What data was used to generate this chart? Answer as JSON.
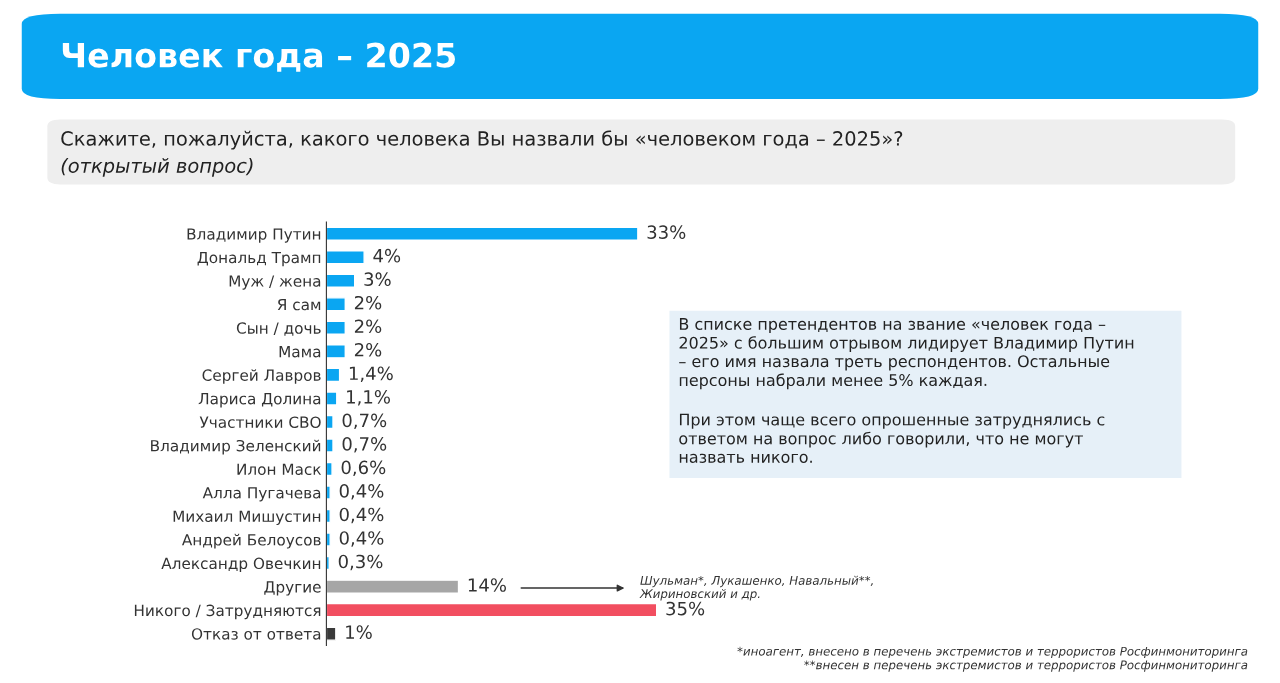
{
  "chart_data": {
    "type": "bar",
    "orientation": "horizontal",
    "title": "Человек года – 2025",
    "subtitle": "Скажите, пожалуйста, какого человека Вы назвали бы «человеком года – 2025»?",
    "categories": [
      "Владимир Путин",
      "Дональд Трамп",
      "Муж / жена",
      "Я сам",
      "Сын / дочь",
      "Мама",
      "Сергей Лавров",
      "Лариса Долина",
      "Участники СВО",
      "Владимир Зеленский",
      "Илон Маск",
      "Алла Пугачева",
      "Михаил Мишустин",
      "Андрей Белоусов",
      "Александр Овечкин",
      "Другие",
      "Никого / Затрудняются",
      "Отказ от ответа"
    ],
    "values": [
      33,
      4,
      3,
      2,
      2,
      2,
      1.4,
      1.1,
      0.7,
      0.7,
      0.6,
      0.4,
      0.4,
      0.4,
      0.3,
      14,
      35,
      1
    ],
    "colors": [
      "#0aa6f2",
      "#0aa6f2",
      "#0aa6f2",
      "#0aa6f2",
      "#0aa6f2",
      "#0aa6f2",
      "#0aa6f2",
      "#0aa6f2",
      "#0aa6f2",
      "#0aa6f2",
      "#0aa6f2",
      "#0aa6f2",
      "#0aa6f2",
      "#0aa6f2",
      "#0aa6f2",
      "#a6a6a6",
      "#f24e60",
      "#3a3a3a"
    ],
    "value_labels": [
      "33%",
      "4%",
      "3%",
      "2%",
      "2%",
      "2%",
      "1,4%",
      "1,1%",
      "0,7%",
      "0,7%",
      "0,6%",
      "0,4%",
      "0,4%",
      "0,4%",
      "0,3%",
      "14%",
      "35%",
      "1%"
    ],
    "annotations": [
      "(открытый вопрос)",
      "В списке претендентов на звание «человек года –\n2025» с большим отрывом лидирует Владимир Путин\n– его имя назвала треть респондентов. Остальные\nперсоны набрали менее 5% каждая.",
      "При этом чаще всего опрошенные затруднялись с\nответом на вопрос либо говорили, что не могут\nназвать никого.",
      "*иноагент, внесено в перечень экстремистов и террористов Росфинмониторинга",
      "**внесен в перечень экстремистов и террористов Росфинмониторинга",
      "Шульман*, Лукашенко, Навальный**,\nЖириновский и др."
    ],
    "legend": false,
    "grid": false
  }
}
